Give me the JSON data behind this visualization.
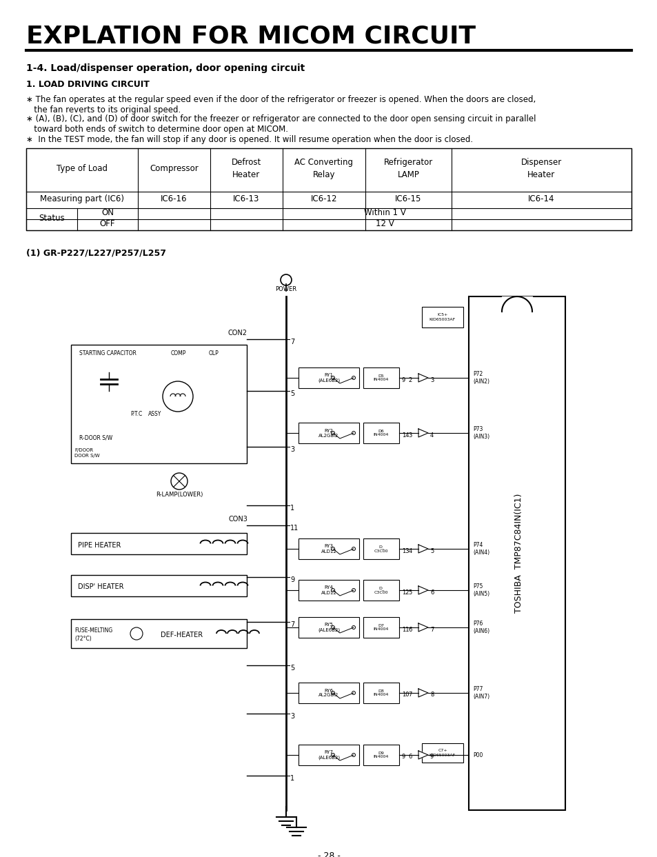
{
  "title": "EXPLATION FOR MICOM CIRCUIT",
  "subtitle": "1-4. Load/dispenser operation, door opening circuit",
  "section1_title": "1. LOAD DRIVING CIRCUIT",
  "bullet1a": "∗ The fan operates at the regular speed even if the door of the refrigerator or freezer is opened. When the doors are closed,",
  "bullet1b": "   the fan reverts to its original speed.",
  "bullet2a": "∗ (A), (B), (C), and (D) of door switch for the freezer or refrigerator are connected to the door open sensing circuit in parallel",
  "bullet2b": "   toward both ends of switch to determine door open at MICOM.",
  "bullet3": "∗  In the TEST mode, the fan will stop if any door is opened. It will resume operation when the door is closed.",
  "table_col0": "Type of Load",
  "table_col1": "Compressor",
  "table_col2": "Defrost\nHeater",
  "table_col3": "AC Converting\nRelay",
  "table_col4": "Refrigerator\nLAMP",
  "table_col5": "Dispenser\nHeater",
  "meas_label": "Measuring part (IC6)",
  "meas_vals": [
    "IC6-16",
    "IC6-13",
    "IC6-12",
    "IC6-15",
    "IC6-14"
  ],
  "status_label": "Status",
  "on_label": "ON",
  "on_val": "Within 1 V",
  "off_label": "OFF",
  "off_val": "12 V",
  "diagram_subtitle": "(1) GR-P227/L227/P257/L257",
  "page_num": "- 28 -",
  "bg": "#ffffff",
  "fg": "#000000"
}
